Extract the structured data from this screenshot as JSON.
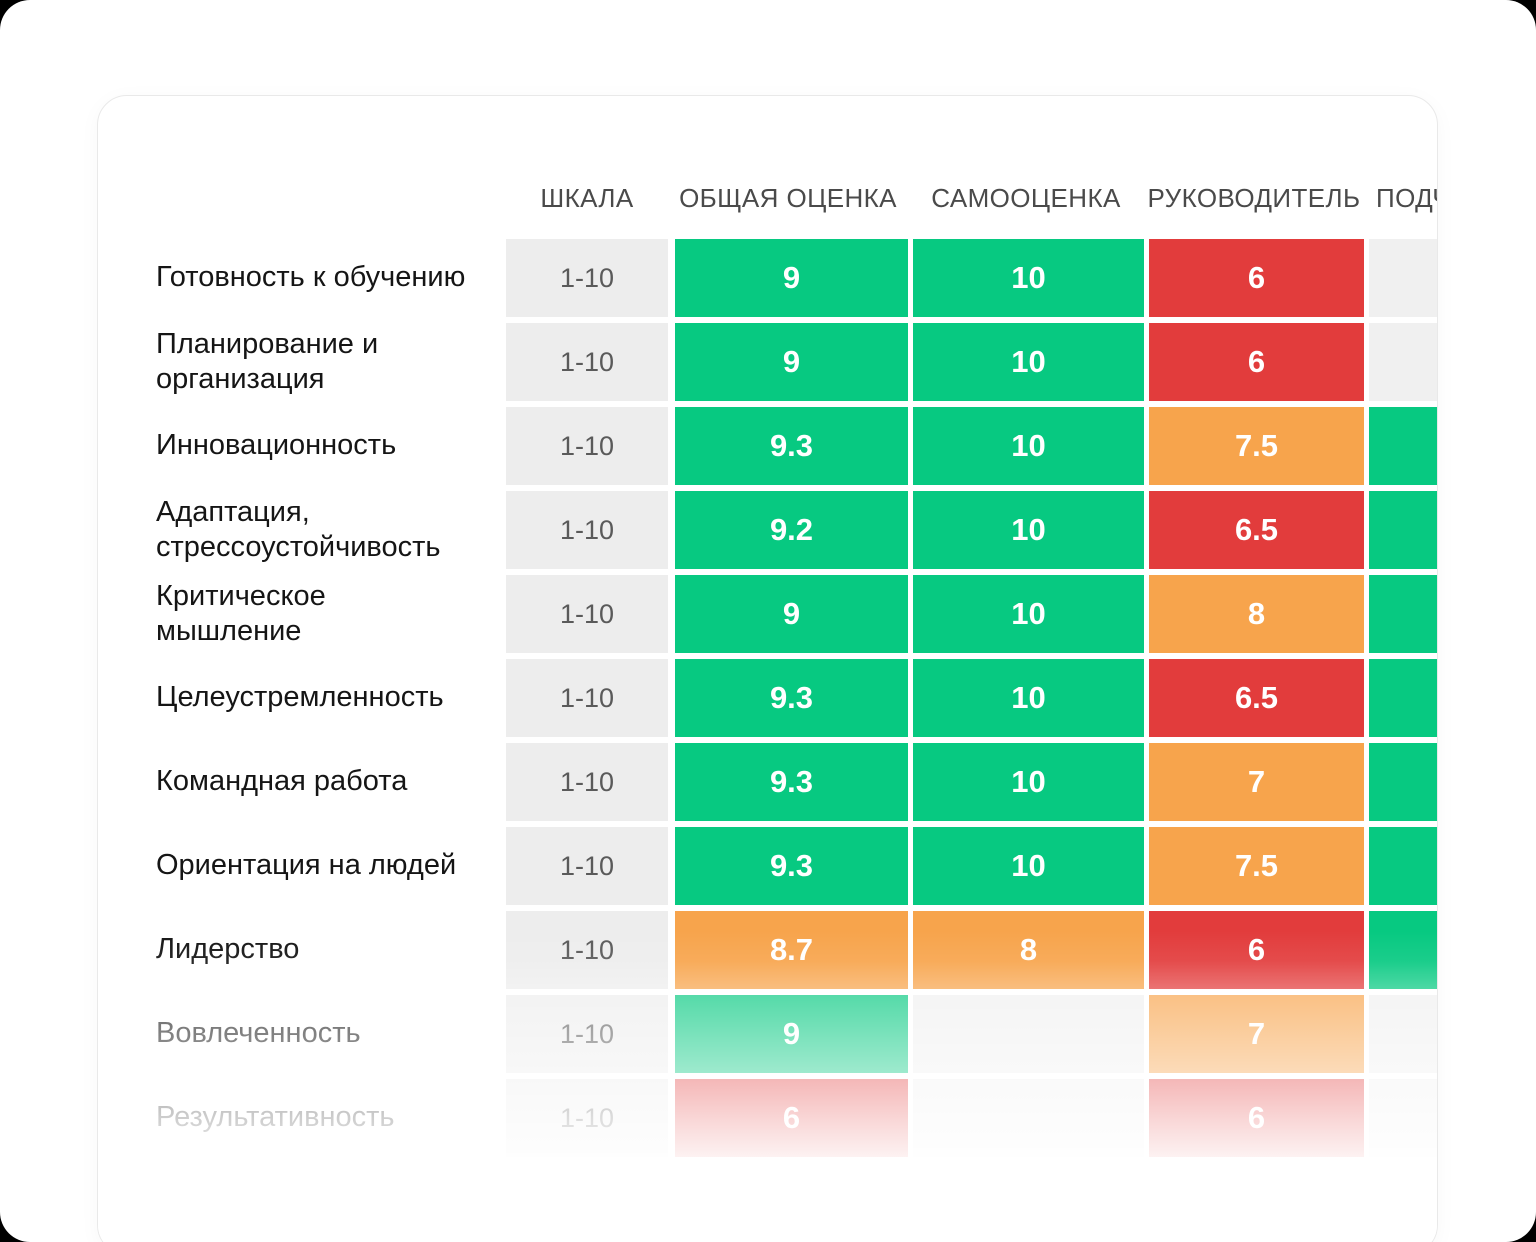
{
  "card": {
    "columns": [
      {
        "key": "scale",
        "label": "ШКАЛА"
      },
      {
        "key": "overall",
        "label": "ОБЩАЯ ОЦЕНКА"
      },
      {
        "key": "self",
        "label": "САМООЦЕНКА"
      },
      {
        "key": "manager",
        "label": "РУКОВОДИТЕЛЬ"
      },
      {
        "key": "subordinates",
        "label": "ПОДЧ"
      }
    ],
    "colors": {
      "green": "#07C981",
      "orange": "#F7A44C",
      "red": "#E23C3C",
      "empty": "#F0F0F0"
    },
    "rows": [
      {
        "label": "Готовность к обучению",
        "scale": "1-10",
        "overall": {
          "value": "9",
          "color": "green"
        },
        "self": {
          "value": "10",
          "color": "green"
        },
        "manager": {
          "value": "6",
          "color": "red"
        },
        "subordinates": {
          "value": "",
          "color": "empty"
        }
      },
      {
        "label": "Планирование и\nорганизация",
        "scale": "1-10",
        "overall": {
          "value": "9",
          "color": "green"
        },
        "self": {
          "value": "10",
          "color": "green"
        },
        "manager": {
          "value": "6",
          "color": "red"
        },
        "subordinates": {
          "value": "",
          "color": "empty"
        }
      },
      {
        "label": "Инновационность",
        "scale": "1-10",
        "overall": {
          "value": "9.3",
          "color": "green"
        },
        "self": {
          "value": "10",
          "color": "green"
        },
        "manager": {
          "value": "7.5",
          "color": "orange"
        },
        "subordinates": {
          "value": "",
          "color": "green"
        }
      },
      {
        "label": "Адаптация,\nстрессоустойчивость",
        "scale": "1-10",
        "overall": {
          "value": "9.2",
          "color": "green"
        },
        "self": {
          "value": "10",
          "color": "green"
        },
        "manager": {
          "value": "6.5",
          "color": "red"
        },
        "subordinates": {
          "value": "",
          "color": "green"
        }
      },
      {
        "label": "Критическое\nмышление",
        "scale": "1-10",
        "overall": {
          "value": "9",
          "color": "green"
        },
        "self": {
          "value": "10",
          "color": "green"
        },
        "manager": {
          "value": "8",
          "color": "orange"
        },
        "subordinates": {
          "value": "",
          "color": "green"
        }
      },
      {
        "label": "Целеустремленность",
        "scale": "1-10",
        "overall": {
          "value": "9.3",
          "color": "green"
        },
        "self": {
          "value": "10",
          "color": "green"
        },
        "manager": {
          "value": "6.5",
          "color": "red"
        },
        "subordinates": {
          "value": "",
          "color": "green"
        }
      },
      {
        "label": "Командная работа",
        "scale": "1-10",
        "overall": {
          "value": "9.3",
          "color": "green"
        },
        "self": {
          "value": "10",
          "color": "green"
        },
        "manager": {
          "value": "7",
          "color": "orange"
        },
        "subordinates": {
          "value": "",
          "color": "green"
        }
      },
      {
        "label": "Ориентация на людей",
        "scale": "1-10",
        "overall": {
          "value": "9.3",
          "color": "green"
        },
        "self": {
          "value": "10",
          "color": "green"
        },
        "manager": {
          "value": "7.5",
          "color": "orange"
        },
        "subordinates": {
          "value": "",
          "color": "green"
        }
      },
      {
        "label": "Лидерство",
        "scale": "1-10",
        "overall": {
          "value": "8.7",
          "color": "orange"
        },
        "self": {
          "value": "8",
          "color": "orange"
        },
        "manager": {
          "value": "6",
          "color": "red"
        },
        "subordinates": {
          "value": "",
          "color": "green"
        }
      },
      {
        "label": "Вовлеченность",
        "scale": "1-10",
        "overall": {
          "value": "9",
          "color": "green"
        },
        "self": {
          "value": "",
          "color": "empty"
        },
        "manager": {
          "value": "7",
          "color": "orange"
        },
        "subordinates": {
          "value": "",
          "color": "empty"
        }
      },
      {
        "label": "Результативность",
        "scale": "1-10",
        "overall": {
          "value": "6",
          "color": "red"
        },
        "self": {
          "value": "",
          "color": "empty"
        },
        "manager": {
          "value": "6",
          "color": "red"
        },
        "subordinates": {
          "value": "",
          "color": "empty"
        }
      }
    ]
  }
}
